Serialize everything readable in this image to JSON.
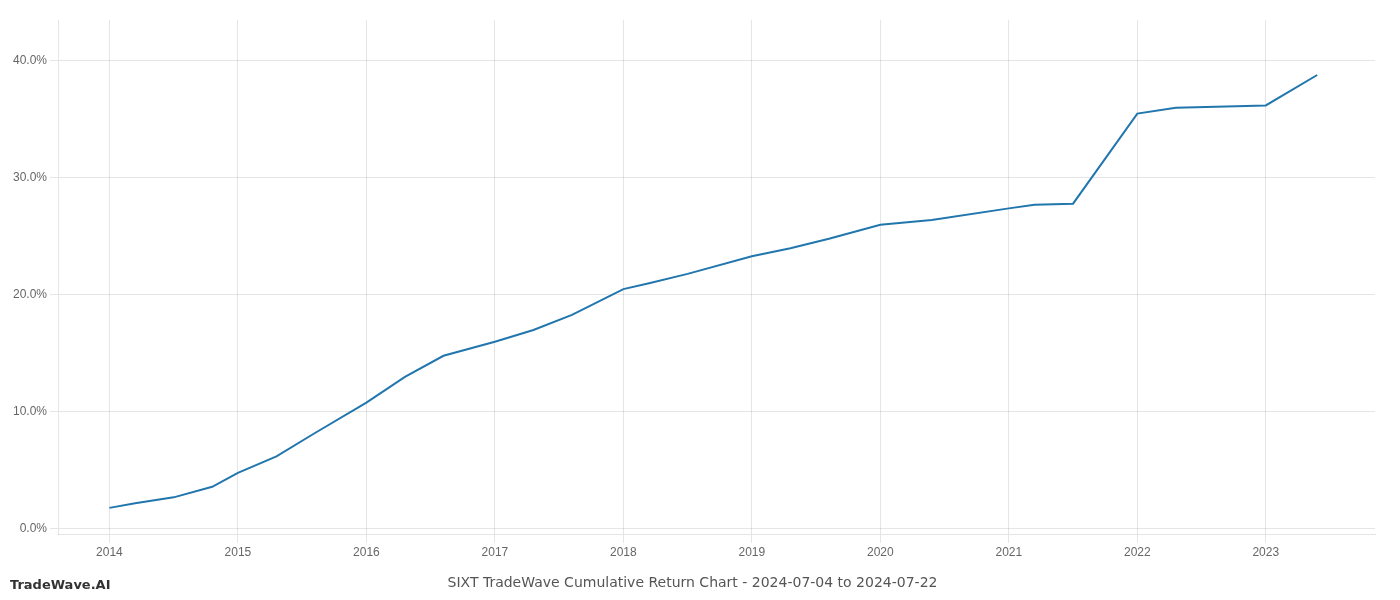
{
  "chart_data": {
    "type": "line",
    "title": "SIXT TradeWave Cumulative Return Chart - 2024-07-04 to 2024-07-22",
    "annotations": [
      "TradeWave.AI"
    ],
    "x": [
      2014.0,
      2014.2,
      2014.5,
      2014.8,
      2015.0,
      2015.3,
      2015.6,
      2016.0,
      2016.3,
      2016.6,
      2017.0,
      2017.3,
      2017.6,
      2018.0,
      2018.2,
      2018.5,
      2019.0,
      2019.3,
      2019.6,
      2020.0,
      2020.4,
      2021.0,
      2021.2,
      2021.5,
      2022.0,
      2022.3,
      2023.0,
      2023.4
    ],
    "values": [
      0.018,
      0.022,
      0.027,
      0.036,
      0.048,
      0.062,
      0.082,
      0.108,
      0.13,
      0.148,
      0.16,
      0.17,
      0.183,
      0.205,
      0.21,
      0.218,
      0.233,
      0.24,
      0.248,
      0.26,
      0.264,
      0.274,
      0.277,
      0.278,
      0.355,
      0.36,
      0.362,
      0.388
    ],
    "color": "#2176ae",
    "xlim": [
      2013.6,
      2023.85
    ],
    "ylim": [
      -0.005,
      0.435
    ],
    "xticks": [
      2014,
      2015,
      2016,
      2017,
      2018,
      2019,
      2020,
      2021,
      2022,
      2023
    ],
    "yticks": [
      {
        "value": 0.0,
        "label": "0.0%"
      },
      {
        "value": 0.1,
        "label": "10.0%"
      },
      {
        "value": 0.2,
        "label": "20.0%"
      },
      {
        "value": 0.3,
        "label": "30.0%"
      },
      {
        "value": 0.4,
        "label": "40.0%"
      }
    ],
    "grid": true
  }
}
